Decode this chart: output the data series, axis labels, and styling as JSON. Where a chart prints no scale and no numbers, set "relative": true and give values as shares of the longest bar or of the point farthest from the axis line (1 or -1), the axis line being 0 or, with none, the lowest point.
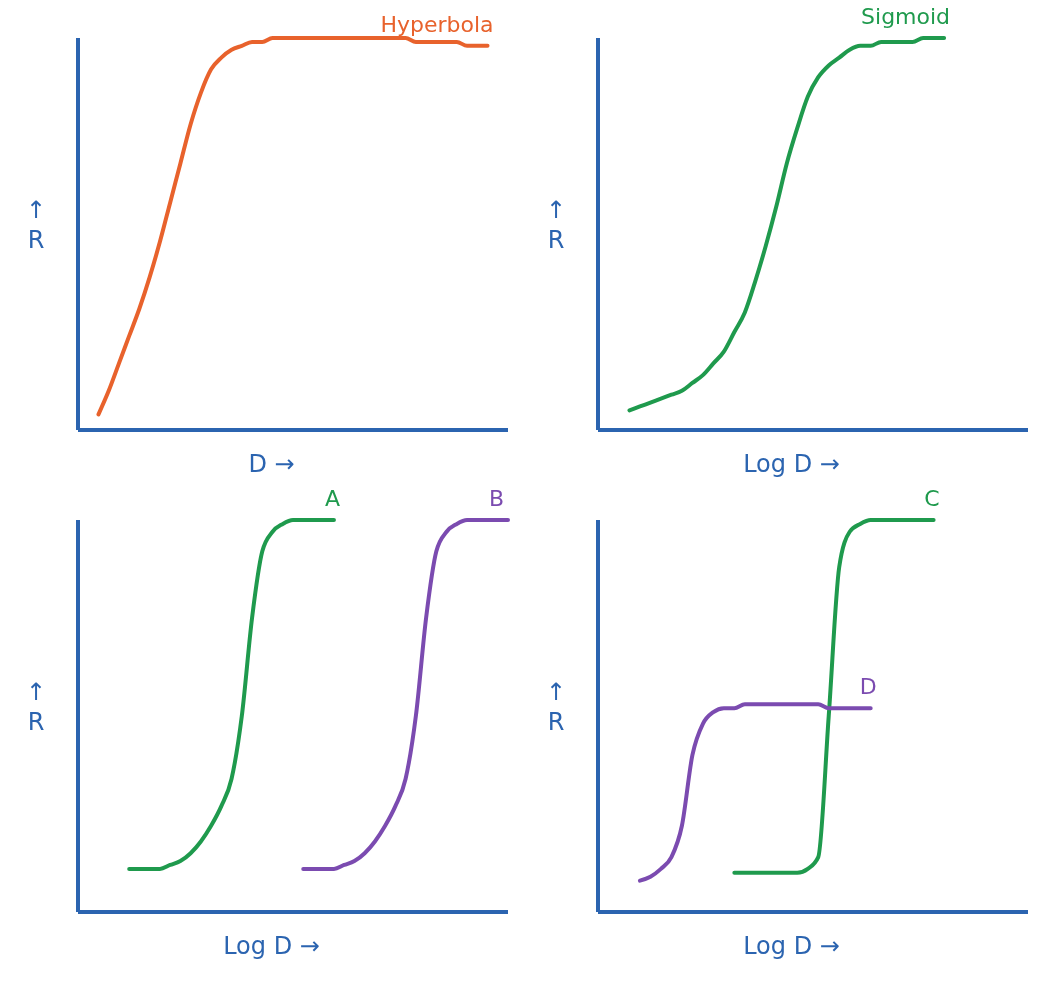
{
  "chart_data": [
    {
      "type": "line",
      "relative": true,
      "xlabel": "D →",
      "ylabel": "↑ R",
      "categories": [
        null,
        null,
        null,
        null,
        null,
        null,
        null,
        null,
        null,
        null,
        null,
        null,
        null,
        null,
        null,
        null,
        null,
        null,
        null,
        null,
        null,
        null,
        null,
        null,
        null,
        null,
        null,
        null,
        null,
        null,
        null,
        null,
        null,
        null,
        null,
        null,
        null,
        null,
        null,
        null,
        null,
        null,
        null
      ],
      "series": [
        {
          "name": "Hyperbola",
          "color": "#e8622c",
          "values": [
            null,
            null,
            0.04,
            0.1,
            0.17,
            0.24,
            0.31,
            0.39,
            0.48,
            0.58,
            0.68,
            0.78,
            0.86,
            0.92,
            0.95,
            0.97,
            0.98,
            0.99,
            0.99,
            1,
            1,
            1,
            1,
            1,
            1,
            1,
            1,
            1,
            1,
            1,
            1,
            1,
            1,
            0.99,
            0.99,
            0.99,
            0.99,
            0.99,
            0.98,
            0.98,
            0.98,
            null,
            null
          ]
        }
      ]
    },
    {
      "type": "line",
      "relative": true,
      "xlabel": "Log D →",
      "ylabel": "↑ R",
      "categories": [
        null,
        null,
        null,
        null,
        null,
        null,
        null,
        null,
        null,
        null,
        null,
        null,
        null,
        null,
        null,
        null,
        null,
        null,
        null,
        null,
        null,
        null,
        null,
        null,
        null,
        null,
        null,
        null,
        null,
        null,
        null,
        null,
        null,
        null,
        null,
        null,
        null,
        null,
        null,
        null,
        null,
        null
      ],
      "series": [
        {
          "name": "Sigmoid",
          "color": "#1f9a4d",
          "values": [
            null,
            null,
            null,
            0.05,
            0.06,
            0.07,
            0.08,
            0.09,
            0.1,
            0.12,
            0.14,
            0.17,
            0.2,
            0.25,
            0.3,
            0.38,
            0.47,
            0.57,
            0.68,
            0.77,
            0.85,
            0.9,
            0.93,
            0.95,
            0.97,
            0.98,
            0.98,
            0.99,
            0.99,
            0.99,
            0.99,
            1,
            1,
            1,
            null,
            null,
            null,
            null,
            null,
            null,
            null,
            null
          ]
        }
      ]
    },
    {
      "type": "line",
      "relative": true,
      "xlabel": "Log D →",
      "ylabel": "↑ R",
      "categories": [
        null,
        null,
        null,
        null,
        null,
        null,
        null,
        null,
        null,
        null,
        null,
        null,
        null,
        null,
        null,
        null,
        null,
        null,
        null,
        null,
        null,
        null,
        null,
        null,
        null,
        null,
        null,
        null,
        null,
        null,
        null,
        null,
        null,
        null,
        null,
        null,
        null,
        null,
        null,
        null,
        null,
        null,
        null
      ],
      "series": [
        {
          "name": "A",
          "color": "#1f9a4d",
          "values": [
            null,
            null,
            null,
            null,
            null,
            0.11,
            0.11,
            0.11,
            0.11,
            0.12,
            0.13,
            0.15,
            0.18,
            0.22,
            0.27,
            0.34,
            0.5,
            0.75,
            0.92,
            0.97,
            0.99,
            1,
            1,
            1,
            1,
            1,
            null,
            null,
            null,
            null,
            null,
            null,
            null,
            null,
            null,
            null,
            null,
            null,
            null,
            null,
            null,
            null,
            null
          ]
        },
        {
          "name": "B",
          "color": "#7b4bb0",
          "values": [
            null,
            null,
            null,
            null,
            null,
            null,
            null,
            null,
            null,
            null,
            null,
            null,
            null,
            null,
            null,
            null,
            null,
            null,
            null,
            null,
            null,
            null,
            0.11,
            0.11,
            0.11,
            0.11,
            0.12,
            0.13,
            0.15,
            0.18,
            0.22,
            0.27,
            0.34,
            0.5,
            0.75,
            0.92,
            0.97,
            0.99,
            1,
            1,
            1,
            1,
            1
          ]
        }
      ]
    },
    {
      "type": "line",
      "relative": true,
      "xlabel": "Log D →",
      "ylabel": "↑ R",
      "categories": [
        null,
        null,
        null,
        null,
        null,
        null,
        null,
        null,
        null,
        null,
        null,
        null,
        null,
        null,
        null,
        null,
        null,
        null,
        null,
        null,
        null,
        null,
        null,
        null,
        null,
        null,
        null,
        null,
        null,
        null,
        null,
        null,
        null,
        null,
        null,
        null,
        null,
        null,
        null,
        null,
        null,
        null
      ],
      "series": [
        {
          "name": "C",
          "color": "#1f9a4d",
          "values": [
            null,
            null,
            null,
            null,
            null,
            null,
            null,
            null,
            null,
            null,
            null,
            null,
            null,
            0.1,
            0.1,
            0.1,
            0.1,
            0.1,
            0.1,
            0.1,
            0.11,
            0.14,
            0.5,
            0.88,
            0.97,
            0.99,
            1,
            1,
            1,
            1,
            1,
            1,
            1,
            null,
            null,
            null,
            null,
            null,
            null,
            null,
            null,
            null
          ]
        },
        {
          "name": "D",
          "color": "#7b4bb0",
          "values": [
            null,
            null,
            null,
            null,
            0.08,
            0.09,
            0.11,
            0.14,
            0.22,
            0.4,
            0.48,
            0.51,
            0.52,
            0.52,
            0.53,
            0.53,
            0.53,
            0.53,
            0.53,
            0.53,
            0.53,
            0.53,
            0.52,
            0.52,
            0.52,
            0.52,
            0.52,
            null,
            null,
            null,
            null,
            null,
            null,
            null,
            null,
            null,
            null,
            null,
            null,
            null,
            null,
            null
          ]
        }
      ]
    }
  ]
}
